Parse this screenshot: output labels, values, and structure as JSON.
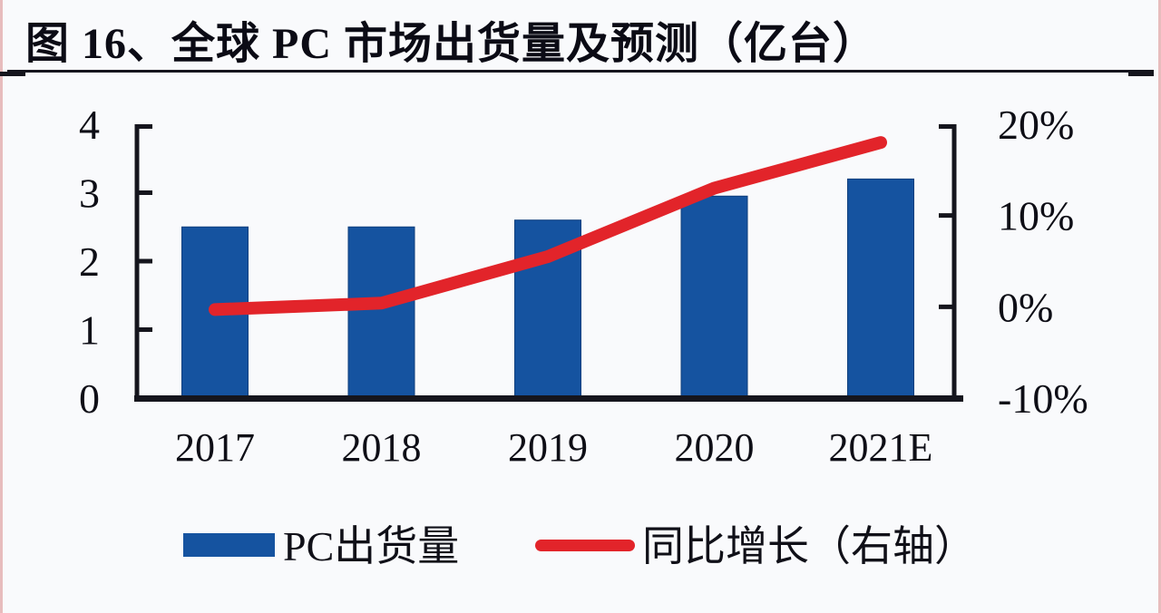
{
  "page": {
    "title": "图 16、全球 PC 市场出货量及预测（亿台）"
  },
  "legend": {
    "bar_label": "PC出货量",
    "line_label": "同比增长（右轴）"
  },
  "colors": {
    "bar_blue": "#1553a0",
    "bar_edge": "#0f3f7d",
    "line_red": "#e2242a",
    "axis_black": "#15151d",
    "label_text": "#0e0e16",
    "background": "#f9fafc"
  },
  "chart_data": {
    "type": "bar+line (dual axis)",
    "title": "全球 PC 市场出货量及预测（亿台）",
    "categories": [
      "2017",
      "2018",
      "2019",
      "2020",
      "2021E"
    ],
    "series": [
      {
        "name": "PC出货量",
        "type": "bar",
        "axis": "left",
        "unit": "亿台",
        "values": [
          2.5,
          2.5,
          2.6,
          2.95,
          3.2
        ]
      },
      {
        "name": "同比增长（右轴）",
        "type": "line",
        "axis": "right",
        "unit": "%",
        "values": [
          -0.3,
          0.4,
          5.5,
          13,
          18
        ]
      }
    ],
    "left_axis": {
      "min": 0,
      "max": 4,
      "tick_values": [
        0,
        1,
        2,
        3,
        4
      ],
      "tick_labels": [
        "0",
        "1",
        "2",
        "3",
        "4"
      ]
    },
    "right_axis": {
      "min": -10,
      "max": 20,
      "tick_values": [
        -10,
        0,
        10,
        20
      ],
      "tick_labels": [
        "-10%",
        "0%",
        "10%",
        "20%"
      ]
    },
    "grid": false,
    "legend_position": "bottom"
  }
}
